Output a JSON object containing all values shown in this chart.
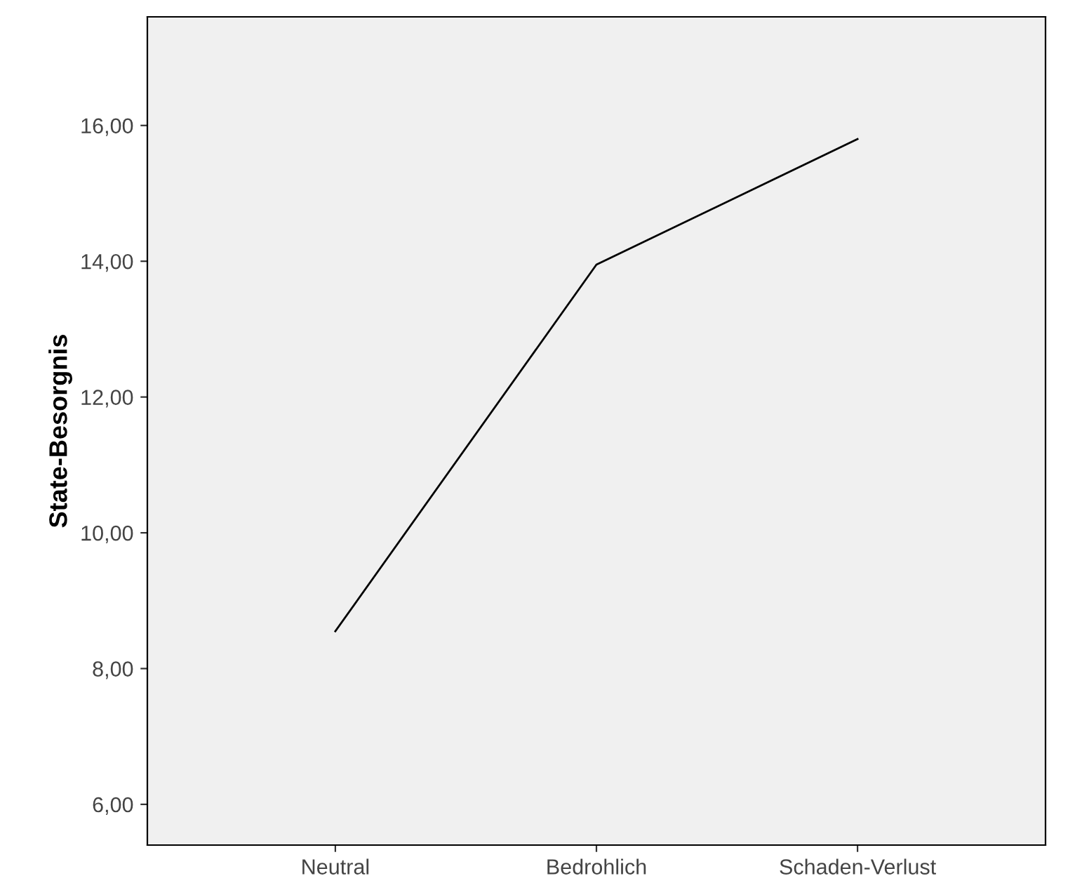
{
  "chart_data": {
    "type": "line",
    "ylabel": "State-Besorgnis",
    "categories": [
      "Neutral",
      "Bedrohlich",
      "Schaden-Verlust"
    ],
    "series": [
      {
        "color": "#000000",
        "values": [
          8.55,
          13.95,
          15.8
        ]
      }
    ],
    "ylim": [
      5.4,
      17.6
    ],
    "yticks": [
      {
        "value": 6,
        "label": "6,00"
      },
      {
        "value": 8,
        "label": "8,00"
      },
      {
        "value": 10,
        "label": "10,00"
      },
      {
        "value": 12,
        "label": "12,00"
      },
      {
        "value": 14,
        "label": "14,00"
      },
      {
        "value": 16,
        "label": "16,00"
      }
    ],
    "grid": false,
    "legend": false,
    "marker": "none",
    "line_style": "solid"
  }
}
